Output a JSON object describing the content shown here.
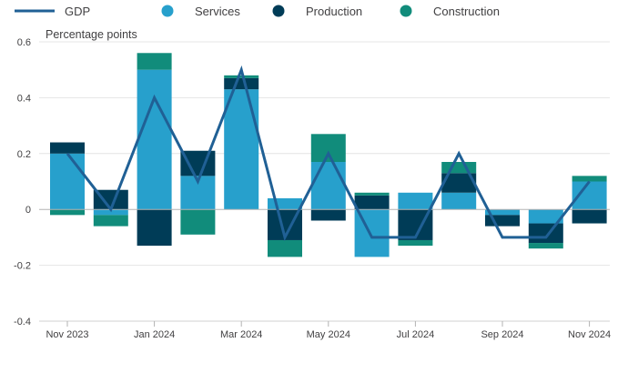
{
  "chart_data": {
    "type": "bar",
    "subtype": "stacked-bar-with-line",
    "ylabel": "Percentage points",
    "ylim": [
      -0.4,
      0.6
    ],
    "yticks": [
      -0.4,
      -0.2,
      0,
      0.2,
      0.4,
      0.6
    ],
    "ytick_labels": [
      "-0.4",
      "-0.2",
      "0",
      "0.2",
      "0.4",
      "0.6"
    ],
    "categories": [
      "Nov 2023",
      "Dec 2023",
      "Jan 2024",
      "Feb 2024",
      "Mar 2024",
      "Apr 2024",
      "May 2024",
      "Jun 2024",
      "Jul 2024",
      "Aug 2024",
      "Sep 2024",
      "Oct 2024",
      "Nov 2024"
    ],
    "xtick_labels": [
      "Nov 2023",
      "",
      "Jan 2024",
      "",
      "Mar 2024",
      "",
      "May 2024",
      "",
      "Jul 2024",
      "",
      "Sep 2024",
      "",
      "Nov 2024"
    ],
    "legend_position": "top-left",
    "series": [
      {
        "name": "GDP",
        "kind": "line",
        "color": "#206095",
        "values": [
          0.2,
          0.0,
          0.4,
          0.1,
          0.5,
          -0.1,
          0.2,
          -0.1,
          -0.1,
          0.2,
          -0.1,
          -0.1,
          0.1
        ]
      },
      {
        "name": "Services",
        "kind": "bar",
        "color": "#27a0cc",
        "values": [
          0.2,
          -0.02,
          0.5,
          0.12,
          0.43,
          0.04,
          0.17,
          -0.17,
          0.06,
          0.06,
          -0.02,
          -0.05,
          0.1
        ]
      },
      {
        "name": "Production",
        "kind": "bar",
        "color": "#003c57",
        "values": [
          0.04,
          0.07,
          -0.13,
          0.09,
          0.04,
          -0.11,
          -0.04,
          0.05,
          -0.11,
          0.07,
          -0.04,
          -0.07,
          -0.05
        ]
      },
      {
        "name": "Construction",
        "kind": "bar",
        "color": "#118c7b",
        "values": [
          -0.02,
          -0.04,
          0.06,
          -0.09,
          0.01,
          -0.06,
          0.1,
          0.01,
          -0.02,
          0.04,
          0.0,
          -0.02,
          0.02
        ]
      }
    ]
  }
}
